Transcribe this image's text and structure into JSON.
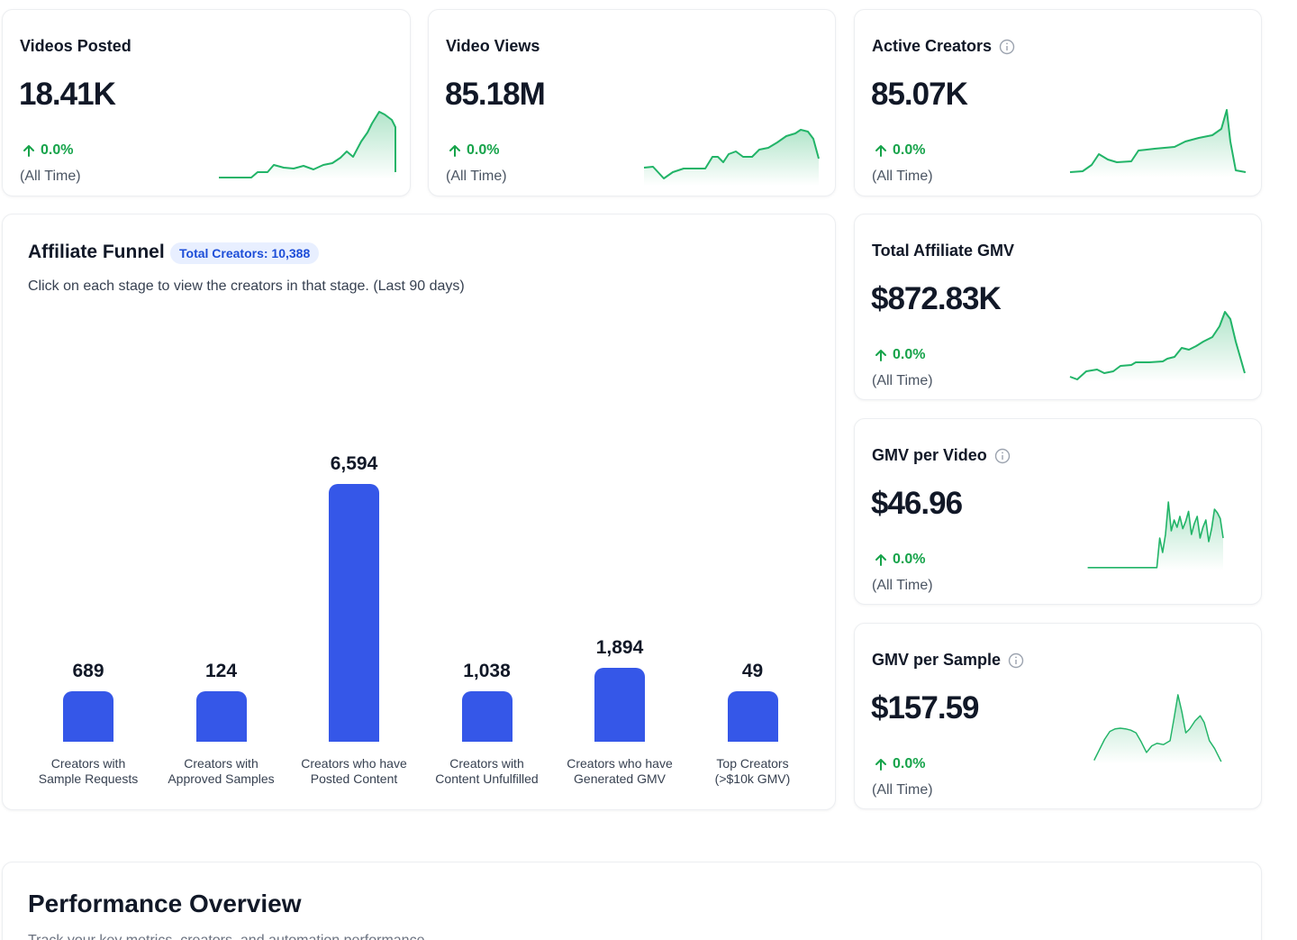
{
  "metrics": [
    {
      "title": "Videos Posted",
      "value": "18.41K",
      "change": "0.0%",
      "period": "(All Time)",
      "has_info": false
    },
    {
      "title": "Video Views",
      "value": "85.18M",
      "change": "0.0%",
      "period": "(All Time)",
      "has_info": false
    },
    {
      "title": "Active Creators",
      "value": "85.07K",
      "change": "0.0%",
      "period": "(All Time)",
      "has_info": true
    },
    {
      "title": "Total Affiliate GMV",
      "value": "$872.83K",
      "change": "0.0%",
      "period": "(All Time)",
      "has_info": false
    },
    {
      "title": "GMV per Video",
      "value": "$46.96",
      "change": "0.0%",
      "period": "(All Time)",
      "has_info": true
    },
    {
      "title": "GMV per Sample",
      "value": "$157.59",
      "change": "0.0%",
      "period": "(All Time)",
      "has_info": true
    }
  ],
  "funnel": {
    "title": "Affiliate Funnel",
    "badge": "Total Creators: 10,388",
    "subtitle": "Click on each stage to view the creators in that stage. (Last 90 days)"
  },
  "chart_data": {
    "type": "bar",
    "categories": [
      "Creators with\nSample Requests",
      "Creators with\nApproved Samples",
      "Creators who have\nPosted Content",
      "Creators with\nContent Unfulfilled",
      "Creators who have\nGenerated GMV",
      "Top Creators\n(>$10k GMV)"
    ],
    "values": [
      689,
      124,
      6594,
      1038,
      1894,
      49
    ],
    "value_labels": [
      "689",
      "124",
      "6,594",
      "1,038",
      "1,894",
      "49"
    ],
    "title": "",
    "xlabel": "",
    "ylabel": "",
    "grid": false,
    "bar_color": "#3557e8"
  },
  "performance": {
    "title": "Performance Overview",
    "subtitle": "Track your key metrics, creators, and automation performance"
  },
  "colors": {
    "accent": "#3557e8",
    "positive": "#16a34a",
    "sparkline": "#22b468",
    "badge_bg": "#e8efff",
    "badge_text": "#1d4ed8"
  },
  "icons": {
    "info": "info-icon",
    "trend": "arrow-up-icon"
  }
}
